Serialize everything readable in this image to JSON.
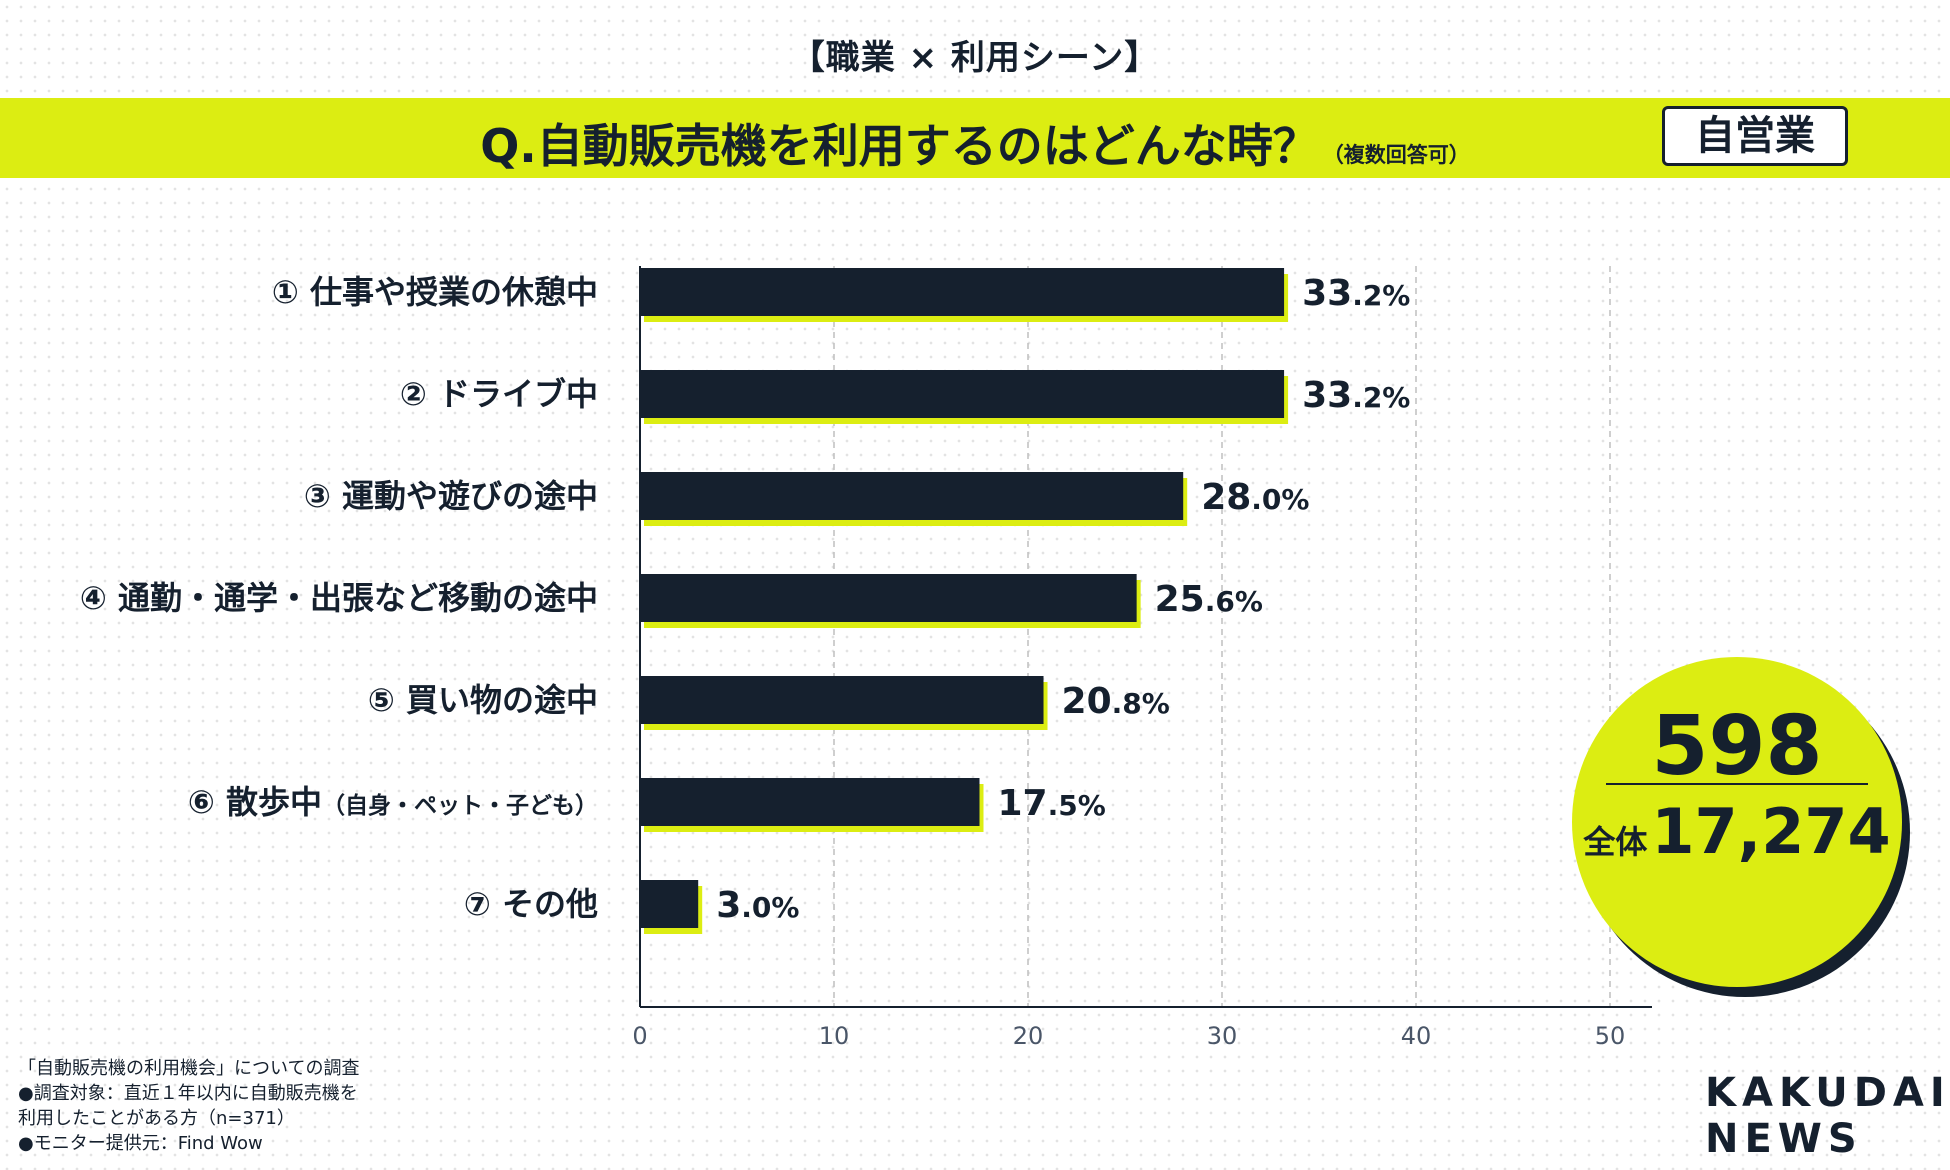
{
  "header": {
    "subtitle": "【職業 × 利用シーン】",
    "question": "Q.自動販売機を利用するのはどんな時？",
    "question_note": "（複数回答可）",
    "segment": "自営業"
  },
  "chart_data": {
    "type": "bar",
    "orientation": "horizontal",
    "categories": [
      "① 仕事や授業の休憩中",
      "② ドライブ中",
      "③ 運動や遊びの途中",
      "④ 通勤・通学・出張など移動の途中",
      "⑤ 買い物の途中",
      "⑥ 散歩中",
      "⑦ その他"
    ],
    "category_notes": [
      "",
      "",
      "",
      "",
      "",
      "（自身・ペット・子ども）",
      ""
    ],
    "values": [
      33.2,
      33.2,
      28.0,
      25.6,
      20.8,
      17.5,
      3.0
    ],
    "value_suffix": "%",
    "xlim": [
      0,
      50
    ],
    "xticks": [
      0,
      10,
      20,
      30,
      40,
      50
    ],
    "grid": "vertical dashed",
    "bar_color": "#15202e",
    "shadow_color": "#dced12"
  },
  "summary": {
    "sample": "598",
    "total_label": "全体",
    "total": "17,274"
  },
  "footer": {
    "lines": [
      "「自動販売機の利用機会」についての調査",
      "●調査対象：直近１年以内に自動販売機を",
      "利用したことがある方（n=371）",
      "●モニター提供元：Find Wow"
    ]
  },
  "logo": {
    "line1": "KAKUDAI",
    "line2": "NEWS"
  }
}
